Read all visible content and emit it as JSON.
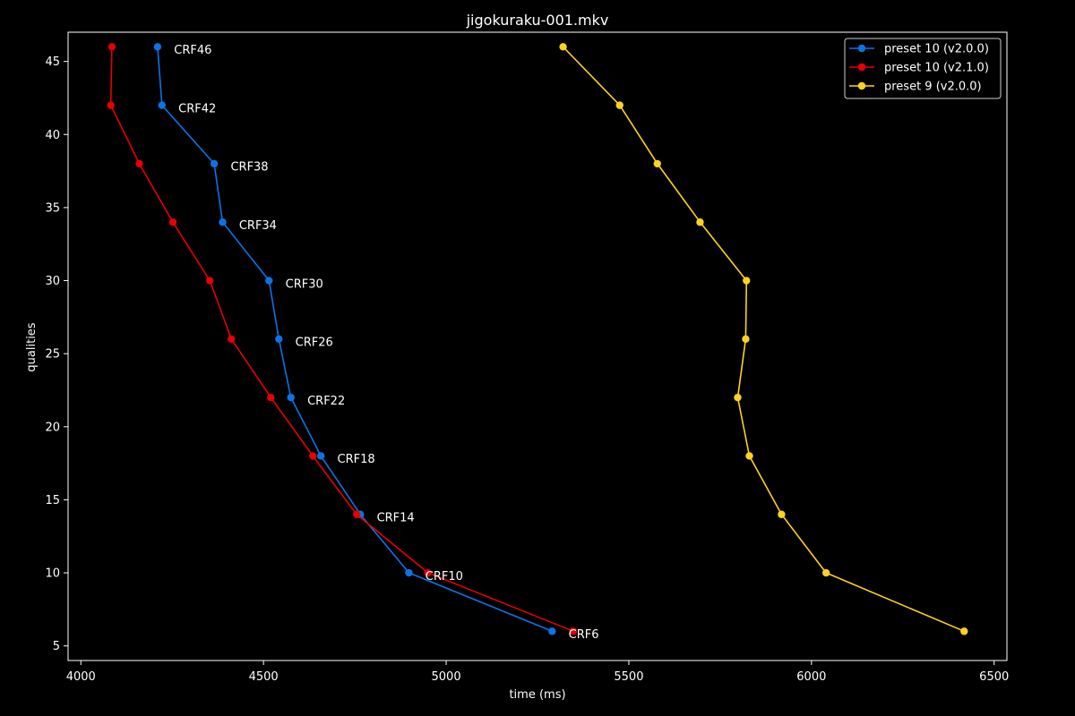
{
  "chart_data": {
    "type": "line",
    "title": "jigokuraku-001.mkv",
    "xlabel": "time (ms)",
    "ylabel": "qualities",
    "xlim": [
      3965,
      6535
    ],
    "ylim": [
      4,
      47
    ],
    "xticks": [
      4000,
      4500,
      5000,
      5500,
      6000,
      6500
    ],
    "yticks": [
      5,
      10,
      15,
      20,
      25,
      30,
      35,
      40,
      45
    ],
    "grid": false,
    "legend_position": "top-right",
    "colors": {
      "background": "#000000",
      "foreground": "#ffffff"
    },
    "series": [
      {
        "name": "preset 10 (v2.0.0)",
        "color": "#0a74e6",
        "x": [
          4210,
          4222,
          4365,
          4388,
          4515,
          4542,
          4575,
          4657,
          4765,
          4898,
          5290
        ],
        "y": [
          46,
          42,
          38,
          34,
          30,
          26,
          22,
          18,
          14,
          10,
          6
        ]
      },
      {
        "name": "preset 10 (v2.1.0)",
        "color": "#e60000",
        "x": [
          4085,
          4082,
          4160,
          4252,
          4353,
          4412,
          4520,
          4635,
          4755,
          4950,
          5348
        ],
        "y": [
          46,
          42,
          38,
          34,
          30,
          26,
          22,
          18,
          14,
          10,
          6
        ]
      },
      {
        "name": "preset 9 (v2.0.0)",
        "color": "#ffd21f",
        "x": [
          5320,
          5475,
          5578,
          5695,
          5822,
          5820,
          5798,
          5830,
          5918,
          6040,
          6418
        ],
        "y": [
          46,
          42,
          38,
          34,
          30,
          26,
          22,
          18,
          14,
          10,
          6
        ]
      }
    ],
    "annotations": [
      {
        "text": "CRF46",
        "x": 4255,
        "y": 45.8
      },
      {
        "text": "CRF42",
        "x": 4267,
        "y": 41.8
      },
      {
        "text": "CRF38",
        "x": 4410,
        "y": 37.8
      },
      {
        "text": "CRF34",
        "x": 4433,
        "y": 33.8
      },
      {
        "text": "CRF30",
        "x": 4560,
        "y": 29.8
      },
      {
        "text": "CRF26",
        "x": 4587,
        "y": 25.8
      },
      {
        "text": "CRF22",
        "x": 4620,
        "y": 21.8
      },
      {
        "text": "CRF18",
        "x": 4702,
        "y": 17.8
      },
      {
        "text": "CRF14",
        "x": 4810,
        "y": 13.8
      },
      {
        "text": "CRF10",
        "x": 4943,
        "y": 9.8
      },
      {
        "text": "CRF6",
        "x": 5335,
        "y": 5.8
      }
    ]
  }
}
